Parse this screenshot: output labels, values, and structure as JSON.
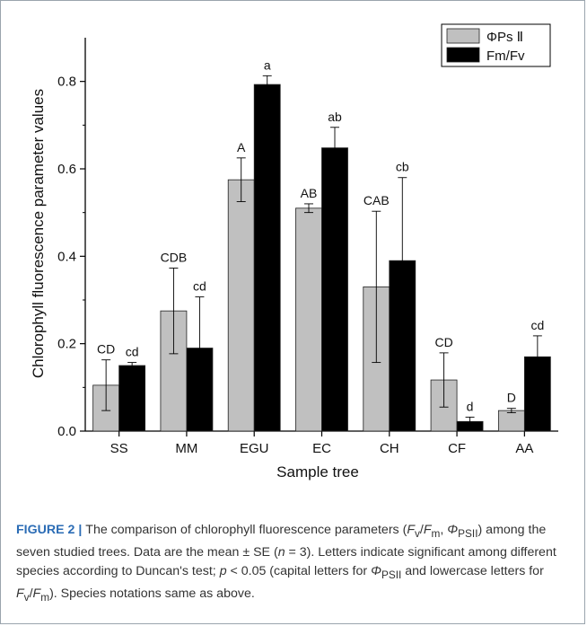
{
  "chart_data": {
    "type": "bar",
    "categories": [
      "SS",
      "MM",
      "EGU",
      "EC",
      "CH",
      "CF",
      "AA"
    ],
    "series": [
      {
        "name": "ΦPs Ⅱ",
        "color": "#c0c0c0",
        "values": [
          0.105,
          0.275,
          0.575,
          0.51,
          0.33,
          0.117,
          0.047
        ],
        "errors": [
          0.058,
          0.098,
          0.05,
          0.01,
          0.173,
          0.062,
          0.005
        ],
        "letters": [
          "CD",
          "CDB",
          "A",
          "AB",
          "CAB",
          "CD",
          "D"
        ]
      },
      {
        "name": "Fm/Fv",
        "color": "#000000",
        "values": [
          0.15,
          0.19,
          0.793,
          0.648,
          0.39,
          0.022,
          0.17
        ],
        "errors": [
          0.007,
          0.117,
          0.02,
          0.047,
          0.19,
          0.01,
          0.048
        ],
        "letters": [
          "cd",
          "cd",
          "a",
          "ab",
          "cb",
          "d",
          "cd"
        ]
      }
    ],
    "xlabel": "Sample tree",
    "ylabel": "Chlorophyll fluorescence parameter values",
    "ylim": [
      0,
      0.9
    ],
    "yticks": [
      "0.0",
      "0.2",
      "0.4",
      "0.6",
      "0.8"
    ],
    "legend_position": "top-right"
  },
  "caption": {
    "label": "FIGURE 2",
    "separator": " | ",
    "part1": "The comparison of chlorophyll fluorescence parameters (",
    "fv": "F",
    "fv_sub": "v",
    "slash": "/",
    "fm": "F",
    "fm_sub": "m",
    "comma": ", ",
    "phi": "Φ",
    "phi_sub": "PSII",
    "part2": ") among the seven studied trees. Data are the mean ± SE (",
    "n": "n",
    "part3": " = 3). Letters indicate significant among different species according to Duncan's test; ",
    "p": "p",
    "part4": " < 0.05 (capital letters for ",
    "phi2": "Φ",
    "phi2_sub": "PSII",
    "part5": " and lowercase letters for ",
    "fv2": "F",
    "fv2_sub": "v",
    "slash2": "/",
    "fm2": "F",
    "fm2_sub": "m",
    "part6": "). Species notations same as above."
  }
}
